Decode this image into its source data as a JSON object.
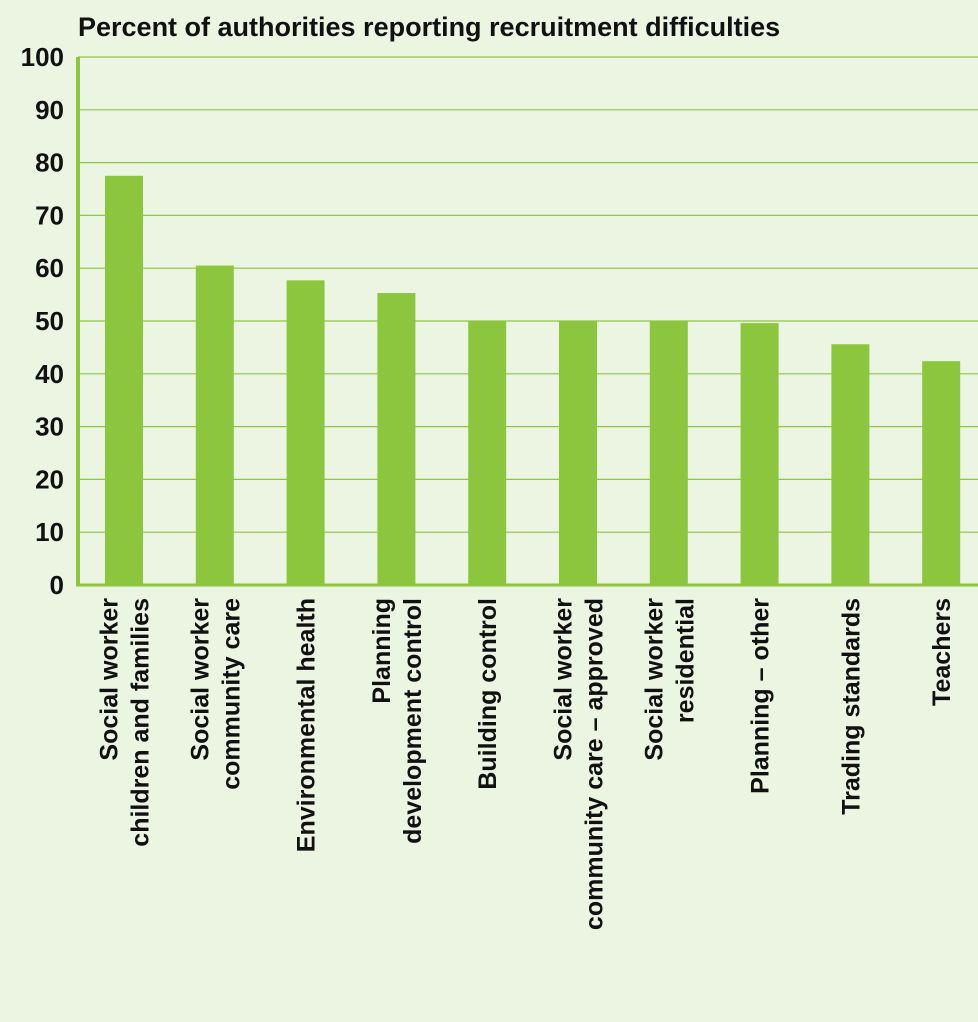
{
  "chart_data": {
    "type": "bar",
    "title": "Percent of authorities reporting recruitment difficulties",
    "xlabel": "",
    "ylabel": "",
    "ylim": [
      0,
      100
    ],
    "yticks": [
      0,
      10,
      20,
      30,
      40,
      50,
      60,
      70,
      80,
      90,
      100
    ],
    "grid": true,
    "categories": [
      "Social worker children and families",
      "Social worker community care",
      "Environmental health",
      "Planning development control",
      "Building control",
      "Social worker community care – approved",
      "Social worker residential",
      "Planning – other",
      "Trading standards",
      "Teachers"
    ],
    "category_label_lines": [
      [
        "Social worker",
        "children and families"
      ],
      [
        "Social worker",
        "community care"
      ],
      [
        "Environmental health"
      ],
      [
        "Planning",
        "development control"
      ],
      [
        "Building control"
      ],
      [
        "Social worker",
        "community care – approved"
      ],
      [
        "Social worker",
        "residential"
      ],
      [
        "Planning – other"
      ],
      [
        "Trading standards"
      ],
      [
        "Teachers"
      ]
    ],
    "values": [
      77.5,
      60.5,
      57.7,
      55.3,
      50.0,
      50.0,
      50.0,
      49.6,
      45.6,
      42.4
    ],
    "colors": {
      "bar": "#8cc63f",
      "grid": "#8cc63f",
      "background": "#ecf4e2",
      "text": "#111111"
    }
  }
}
